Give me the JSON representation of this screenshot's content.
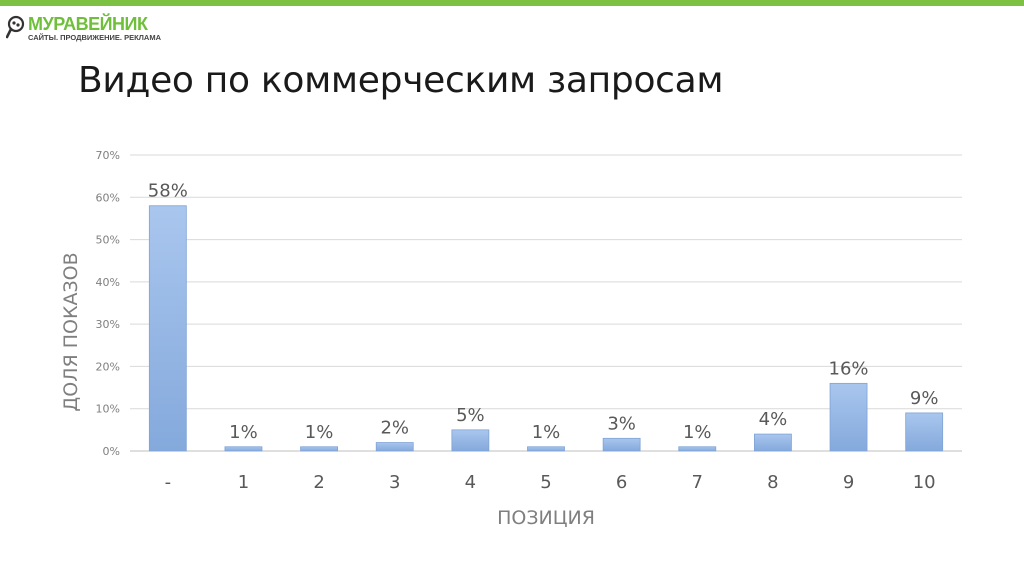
{
  "logo": {
    "name": "МУРАВЕЙНИК",
    "tagline": "САЙТЫ. ПРОДВИЖЕНИЕ. РЕКЛАМА",
    "brand_color": "#7dc142"
  },
  "slide": {
    "title": "Видео по коммерческим запросам"
  },
  "chart_data": {
    "type": "bar",
    "categories": [
      "-",
      "1",
      "2",
      "3",
      "4",
      "5",
      "6",
      "7",
      "8",
      "9",
      "10"
    ],
    "values": [
      58,
      1,
      1,
      2,
      5,
      1,
      3,
      1,
      4,
      16,
      9
    ],
    "data_labels": [
      "58%",
      "1%",
      "1%",
      "2%",
      "5%",
      "1%",
      "3%",
      "1%",
      "4%",
      "16%",
      "9%"
    ],
    "xlabel": "ПОЗИЦИЯ",
    "ylabel": "ДОЛЯ ПОКАЗОВ",
    "ylim": [
      0,
      70
    ],
    "yticks": [
      0,
      10,
      20,
      30,
      40,
      50,
      60,
      70
    ],
    "ytick_labels": [
      "0%",
      "10%",
      "20%",
      "30%",
      "40%",
      "50%",
      "60%",
      "70%"
    ],
    "grid": true,
    "bar_color": "#9dbde8"
  }
}
